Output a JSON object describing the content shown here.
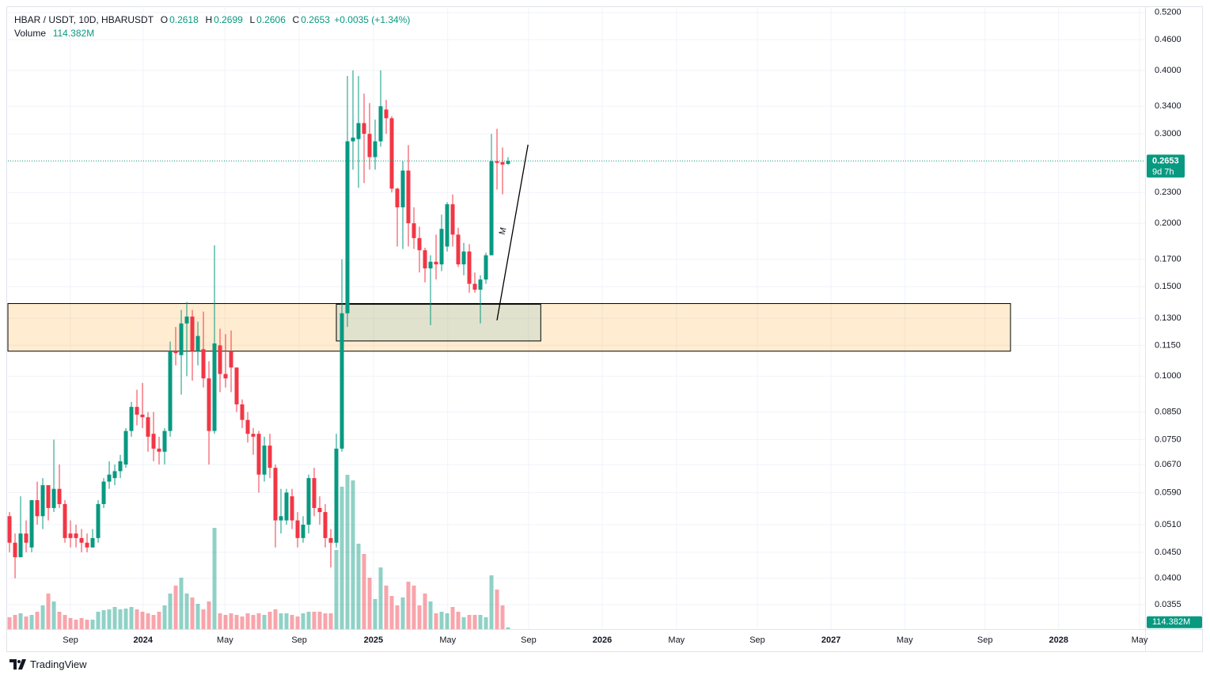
{
  "chart_data": {
    "type": "candlestick",
    "title": "HBAR / USDT, 10D, HBARUSDT",
    "ohlc_letters": [
      "O",
      "H",
      "L",
      "C"
    ],
    "change": "+0.0035 (+1.34%)",
    "volume_name": "Volume",
    "volume_last_label": "114.382M",
    "countdown": "9d 7h",
    "brand": "TradingView",
    "log_scale": true,
    "grid": true,
    "up_color": "#089981",
    "down_color": "#f23645",
    "open": [
      0.053,
      0.047,
      0.044,
      0.049,
      0.046,
      0.057,
      0.053,
      0.061,
      0.055,
      0.06,
      0.056,
      0.049,
      0.049,
      0.048,
      0.047,
      0.046,
      0.048,
      0.056,
      0.062,
      0.063,
      0.065,
      0.067,
      0.078,
      0.087,
      0.084,
      0.083,
      0.077,
      0.072,
      0.071,
      0.078,
      0.112,
      0.11,
      0.127,
      0.131,
      0.112,
      0.113,
      0.099,
      0.078,
      0.115,
      0.101,
      0.112,
      0.104,
      0.088,
      0.082,
      0.077,
      0.077,
      0.064,
      0.073,
      0.066,
      0.052,
      0.052,
      0.058,
      0.052,
      0.048,
      0.051,
      0.063,
      0.055,
      0.054,
      0.048,
      0.047,
      0.072,
      0.133,
      0.29,
      0.293,
      0.315,
      0.3,
      0.27,
      0.29,
      0.335,
      0.322,
      0.234,
      0.215,
      0.254,
      0.2,
      0.187,
      0.177,
      0.163,
      0.168,
      0.166,
      0.18,
      0.218,
      0.19,
      0.166,
      0.176,
      0.152,
      0.148,
      0.155,
      0.173,
      0.265,
      0.264,
      0.2618
    ],
    "high": [
      0.054,
      0.049,
      0.058,
      0.052,
      0.057,
      0.062,
      0.063,
      0.061,
      0.075,
      0.067,
      0.057,
      0.052,
      0.051,
      0.05,
      0.049,
      0.05,
      0.057,
      0.063,
      0.068,
      0.067,
      0.07,
      0.079,
      0.089,
      0.094,
      0.097,
      0.085,
      0.085,
      0.076,
      0.079,
      0.117,
      0.125,
      0.135,
      0.14,
      0.135,
      0.128,
      0.134,
      0.107,
      0.181,
      0.124,
      0.121,
      0.123,
      0.104,
      0.09,
      0.085,
      0.079,
      0.078,
      0.076,
      0.077,
      0.067,
      0.06,
      0.06,
      0.06,
      0.054,
      0.053,
      0.064,
      0.066,
      0.058,
      0.056,
      0.05,
      0.077,
      0.17,
      0.39,
      0.4,
      0.39,
      0.36,
      0.345,
      0.32,
      0.4,
      0.35,
      0.325,
      0.235,
      0.265,
      0.285,
      0.215,
      0.197,
      0.179,
      0.173,
      0.19,
      0.208,
      0.22,
      0.228,
      0.196,
      0.183,
      0.182,
      0.16,
      0.158,
      0.175,
      0.3,
      0.307,
      0.282,
      0.2699
    ],
    "low": [
      0.045,
      0.04,
      0.044,
      0.045,
      0.045,
      0.051,
      0.05,
      0.052,
      0.054,
      0.055,
      0.047,
      0.046,
      0.046,
      0.045,
      0.045,
      0.046,
      0.047,
      0.055,
      0.06,
      0.061,
      0.063,
      0.066,
      0.076,
      0.08,
      0.079,
      0.071,
      0.068,
      0.067,
      0.067,
      0.076,
      0.105,
      0.092,
      0.1,
      0.098,
      0.105,
      0.095,
      0.067,
      0.077,
      0.093,
      0.095,
      0.093,
      0.085,
      0.079,
      0.074,
      0.07,
      0.059,
      0.062,
      0.063,
      0.046,
      0.049,
      0.051,
      0.05,
      0.046,
      0.047,
      0.049,
      0.053,
      0.051,
      0.046,
      0.042,
      0.046,
      0.071,
      0.125,
      0.255,
      0.235,
      0.24,
      0.255,
      0.255,
      0.283,
      0.3,
      0.23,
      0.18,
      0.178,
      0.18,
      0.178,
      0.16,
      0.153,
      0.126,
      0.155,
      0.161,
      0.176,
      0.18,
      0.164,
      0.158,
      0.146,
      0.146,
      0.127,
      0.152,
      0.173,
      0.233,
      0.228,
      0.2606
    ],
    "close": [
      0.047,
      0.044,
      0.049,
      0.047,
      0.057,
      0.053,
      0.061,
      0.055,
      0.06,
      0.056,
      0.048,
      0.048,
      0.048,
      0.047,
      0.046,
      0.048,
      0.056,
      0.062,
      0.064,
      0.065,
      0.068,
      0.078,
      0.087,
      0.084,
      0.083,
      0.076,
      0.072,
      0.071,
      0.078,
      0.112,
      0.111,
      0.127,
      0.131,
      0.112,
      0.12,
      0.099,
      0.078,
      0.116,
      0.101,
      0.099,
      0.104,
      0.088,
      0.082,
      0.077,
      0.076,
      0.064,
      0.073,
      0.066,
      0.052,
      0.053,
      0.059,
      0.052,
      0.048,
      0.051,
      0.063,
      0.055,
      0.054,
      0.048,
      0.047,
      0.072,
      0.133,
      0.29,
      0.295,
      0.315,
      0.3,
      0.27,
      0.29,
      0.34,
      0.322,
      0.234,
      0.215,
      0.254,
      0.2,
      0.187,
      0.177,
      0.163,
      0.168,
      0.166,
      0.195,
      0.218,
      0.19,
      0.166,
      0.176,
      0.152,
      0.148,
      0.155,
      0.173,
      0.265,
      0.263,
      0.261,
      0.2653
    ],
    "volume": [
      750,
      900,
      1000,
      800,
      900,
      1100,
      1500,
      2250,
      1750,
      1100,
      900,
      700,
      600,
      700,
      600,
      600,
      1100,
      1200,
      1250,
      1400,
      1250,
      1300,
      1400,
      1250,
      1100,
      1000,
      900,
      1100,
      1500,
      2250,
      2750,
      3250,
      2250,
      2000,
      1600,
      1250,
      1750,
      6400,
      1000,
      900,
      1000,
      900,
      800,
      1000,
      900,
      1000,
      900,
      1100,
      1250,
      1000,
      1000,
      900,
      800,
      1000,
      1100,
      1100,
      1100,
      1000,
      1000,
      5000,
      9000,
      9750,
      9400,
      5400,
      4750,
      3250,
      1900,
      3900,
      2750,
      2100,
      1500,
      2000,
      3000,
      2750,
      1500,
      2250,
      1750,
      1000,
      1100,
      1000,
      1400,
      1100,
      750,
      900,
      900,
      900,
      750,
      3400,
      2500,
      1500,
      114.382
    ],
    "xlim": [
      -0.29,
      205
    ],
    "xticks": [
      {
        "value": 11,
        "label": "Sep"
      },
      {
        "value": 24.1,
        "label": "2024"
      },
      {
        "value": 38.9,
        "label": "May"
      },
      {
        "value": 52.3,
        "label": "Sep"
      },
      {
        "value": 65.7,
        "label": "2025"
      },
      {
        "value": 79.1,
        "label": "May"
      },
      {
        "value": 93.7,
        "label": "Sep"
      },
      {
        "value": 107,
        "label": "2026"
      },
      {
        "value": 120.4,
        "label": "May"
      },
      {
        "value": 135,
        "label": "Sep"
      },
      {
        "value": 148.3,
        "label": "2027"
      },
      {
        "value": 161.6,
        "label": "May"
      },
      {
        "value": 176.1,
        "label": "Sep"
      },
      {
        "value": 189.4,
        "label": "2028"
      },
      {
        "value": 204,
        "label": "May"
      }
    ],
    "ylim": [
      0.03176,
      0.531
    ],
    "yticks": [
      {
        "value": 0.52,
        "label": "0.5200"
      },
      {
        "value": 0.46,
        "label": "0.4600"
      },
      {
        "value": 0.4,
        "label": "0.4000"
      },
      {
        "value": 0.34,
        "label": "0.3400"
      },
      {
        "value": 0.3,
        "label": "0.3000"
      },
      {
        "value": 0.23,
        "label": "0.2300"
      },
      {
        "value": 0.2,
        "label": "0.2000"
      },
      {
        "value": 0.17,
        "label": "0.1700"
      },
      {
        "value": 0.15,
        "label": "0.1500"
      },
      {
        "value": 0.13,
        "label": "0.1300"
      },
      {
        "value": 0.115,
        "label": "0.1150"
      },
      {
        "value": 0.1,
        "label": "0.1000"
      },
      {
        "value": 0.085,
        "label": "0.0850"
      },
      {
        "value": 0.075,
        "label": "0.0750"
      },
      {
        "value": 0.067,
        "label": "0.0670"
      },
      {
        "value": 0.059,
        "label": "0.0590"
      },
      {
        "value": 0.051,
        "label": "0.0510"
      },
      {
        "value": 0.045,
        "label": "0.0450"
      },
      {
        "value": 0.04,
        "label": "0.0400"
      },
      {
        "value": 0.0355,
        "label": "0.0355"
      }
    ],
    "y2lim": [
      0,
      39250
    ],
    "zones": [
      {
        "x": [
          -0.29,
          180.7
        ],
        "y": [
          0.112,
          0.139
        ],
        "color": "rgba(255,152,0,0.18)"
      },
      {
        "x": [
          59,
          95.9
        ],
        "y": [
          0.1173,
          0.1385
        ],
        "color": "rgba(120,190,190,0.22)"
      }
    ],
    "trendline": {
      "x": [
        88,
        93.6
      ],
      "y": [
        0.1288,
        0.2856
      ],
      "color": "#000000"
    },
    "annotation": {
      "text": "M",
      "x": 89.1,
      "y": 0.193
    }
  }
}
